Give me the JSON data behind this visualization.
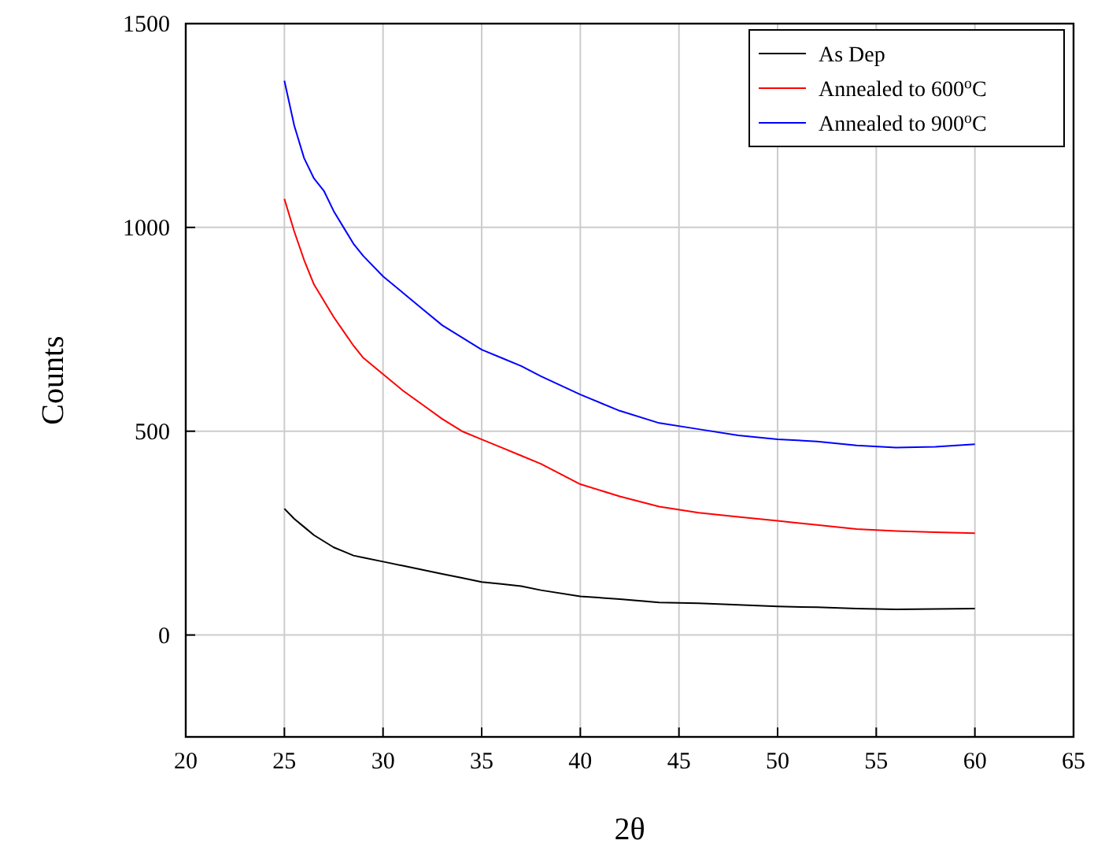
{
  "chart_data": {
    "type": "line",
    "xlabel": "2θ",
    "ylabel": "Counts",
    "xlim": [
      20,
      65
    ],
    "ylim": [
      -250,
      1500
    ],
    "xticks": [
      20,
      25,
      30,
      35,
      40,
      45,
      50,
      55,
      60,
      65
    ],
    "yticks": [
      0,
      500,
      1000,
      1500
    ],
    "grid": true,
    "legend": "top right",
    "marker": "none",
    "line_style": "solid",
    "x": [
      25,
      25.5,
      26,
      26.5,
      27,
      27.5,
      28,
      28.5,
      29,
      30,
      31,
      32,
      33,
      34,
      35,
      36,
      37,
      38,
      40,
      42,
      44,
      46,
      48,
      50,
      52,
      54,
      56,
      58,
      60
    ],
    "series": [
      {
        "name": "As Dep",
        "color": "#000000",
        "values": [
          310,
          285,
          265,
          245,
          230,
          215,
          205,
          195,
          190,
          180,
          170,
          160,
          150,
          140,
          130,
          125,
          120,
          110,
          95,
          88,
          80,
          78,
          74,
          70,
          68,
          65,
          63,
          64,
          65
        ]
      },
      {
        "name": "Annealed to 600$^{o}$C",
        "color": "#ff0000",
        "values": [
          1070,
          990,
          920,
          860,
          820,
          780,
          745,
          710,
          680,
          640,
          600,
          565,
          530,
          500,
          480,
          460,
          440,
          420,
          370,
          340,
          315,
          300,
          290,
          280,
          270,
          260,
          255,
          252,
          250
        ]
      },
      {
        "name": "Annealed to 900$^{o}$C",
        "color": "#0000ff",
        "values": [
          1360,
          1250,
          1170,
          1120,
          1090,
          1040,
          1000,
          960,
          930,
          880,
          840,
          800,
          760,
          730,
          700,
          680,
          660,
          635,
          590,
          550,
          520,
          505,
          490,
          480,
          475,
          465,
          460,
          462,
          468
        ]
      }
    ]
  }
}
